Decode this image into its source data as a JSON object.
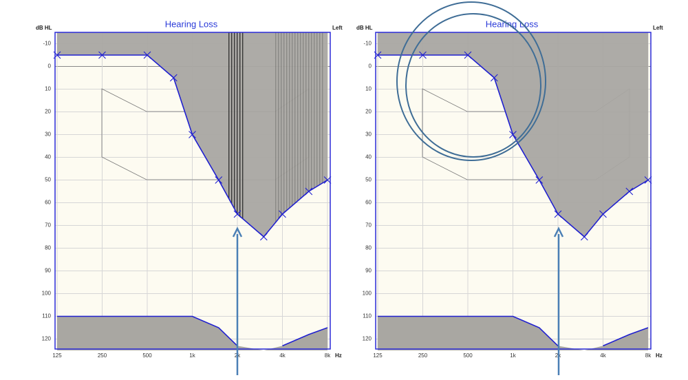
{
  "chart_data": [
    {
      "type": "line",
      "title": "Hearing Loss",
      "y_label": "dB HL",
      "side": "Left",
      "x_label": "Hz",
      "xscale": "log",
      "yreverse": true,
      "grid": true,
      "x": [
        125,
        250,
        500,
        750,
        1000,
        1500,
        2000,
        3000,
        4000,
        6000,
        8000
      ],
      "series": [
        {
          "color": "#1f1fd0",
          "values": [
            -5,
            -5,
            -5,
            5,
            30,
            50,
            65,
            75,
            65,
            55,
            50
          ]
        },
        {
          "color": "#1f1fd0",
          "values": [
            110,
            110,
            110,
            110,
            110,
            115,
            123,
            null,
            123,
            118,
            115
          ]
        }
      ],
      "xlim": [
        125,
        8000
      ],
      "xticks": [
        125,
        250,
        500,
        {
          "value": 1000,
          "label": "1k"
        },
        {
          "value": 2000,
          "label": "2k"
        },
        {
          "value": 4000,
          "label": "4k"
        },
        {
          "value": 8000,
          "label": "8k"
        }
      ],
      "ylim": [
        -15,
        125
      ],
      "yticks": [
        -10,
        0,
        10,
        20,
        30,
        40,
        50,
        60,
        70,
        80,
        90,
        100,
        110,
        120
      ]
    },
    {
      "type": "line",
      "title": "Hearing Loss",
      "y_label": "dB HL",
      "side": "Left",
      "x_label": "Hz",
      "xscale": "log",
      "yreverse": true,
      "grid": true,
      "x": [
        125,
        250,
        500,
        750,
        1000,
        1500,
        2000,
        3000,
        4000,
        6000,
        8000
      ],
      "series": [
        {
          "color": "#1f1fd0",
          "values": [
            -5,
            -5,
            -5,
            5,
            30,
            50,
            65,
            75,
            65,
            55,
            50
          ]
        },
        {
          "color": "#1f1fd0",
          "values": [
            110,
            110,
            110,
            110,
            110,
            115,
            123,
            null,
            123,
            118,
            115
          ]
        }
      ],
      "xlim": [
        125,
        8000
      ],
      "xticks": [
        125,
        250,
        500,
        {
          "value": 1000,
          "label": "1k"
        },
        {
          "value": 2000,
          "label": "2k"
        },
        {
          "value": 4000,
          "label": "4k"
        },
        {
          "value": 8000,
          "label": "8k"
        }
      ],
      "ylim": [
        -15,
        125
      ],
      "yticks": [
        -10,
        0,
        10,
        20,
        30,
        40,
        50,
        60,
        70,
        80,
        90,
        100,
        110,
        120
      ]
    }
  ]
}
